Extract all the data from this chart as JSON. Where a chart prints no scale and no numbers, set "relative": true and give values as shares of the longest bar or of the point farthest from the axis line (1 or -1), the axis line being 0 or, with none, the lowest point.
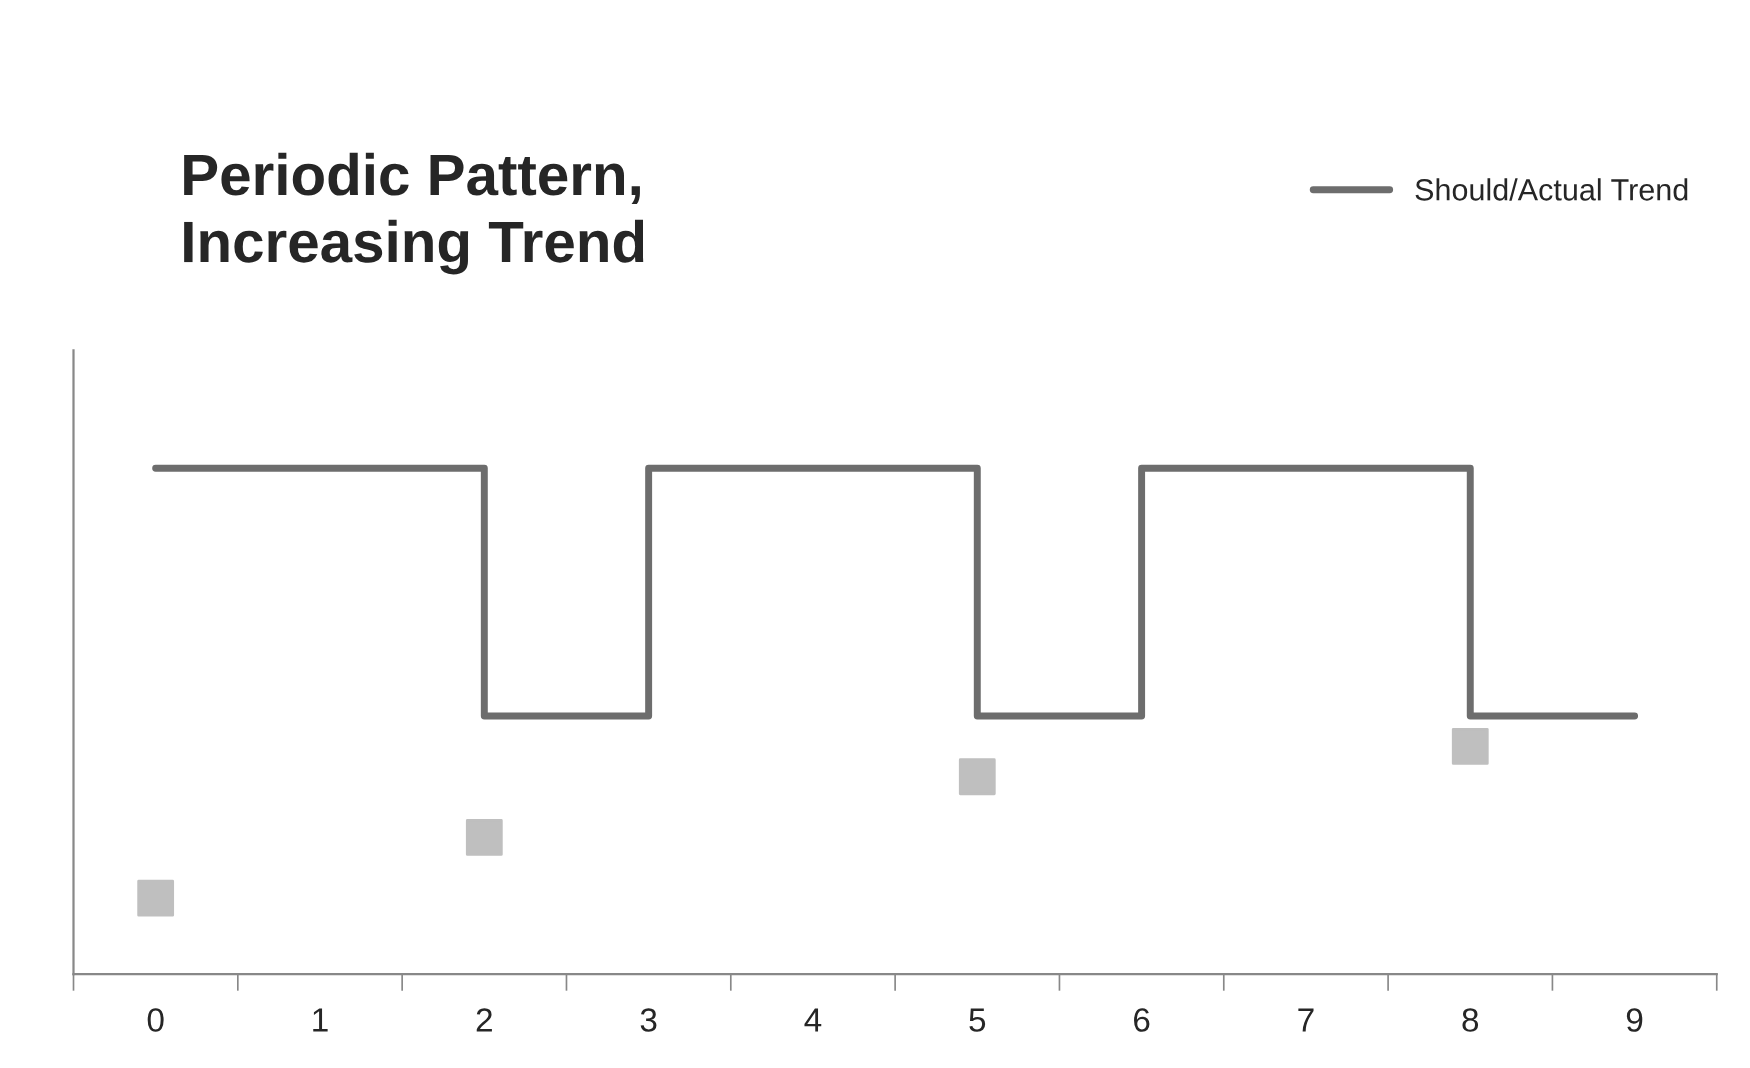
{
  "chart_data": {
    "type": "step",
    "title": "Periodic Pattern,\nIncreasing Trend",
    "relative": true,
    "legend": "top right",
    "grid": false,
    "categories": [
      "0",
      "1",
      "2",
      "3",
      "4",
      "5",
      "6",
      "7",
      "8",
      "9"
    ],
    "series": [
      {
        "name": "Should/Actual Trend",
        "color": "#6d6d6d",
        "values": [
          1,
          1,
          0.51,
          1,
          1,
          0.51,
          1,
          1,
          0.51,
          0.51
        ]
      },
      {
        "type": "scatter",
        "marker": "square",
        "color": "#bfbfbf",
        "x": [
          "0",
          "2",
          "5",
          "8"
        ],
        "values": [
          0.15,
          0.27,
          0.39,
          0.45
        ]
      }
    ]
  }
}
